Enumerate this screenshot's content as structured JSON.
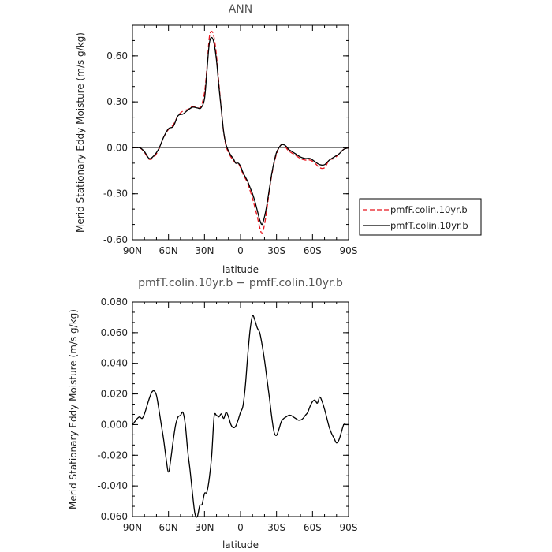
{
  "chart_data": [
    {
      "type": "line",
      "title": "ANN",
      "xlabel": "latitude",
      "ylabel": "Merid Stationary Eddy Moisture (m/s g/kg)",
      "xlim": [
        90,
        -90
      ],
      "ylim": [
        -0.6,
        0.8
      ],
      "x_ticks": [
        90,
        60,
        30,
        0,
        -30,
        -60,
        -90
      ],
      "x_tick_labels": [
        "90N",
        "60N",
        "30N",
        "0",
        "30S",
        "60S",
        "90S"
      ],
      "y_ticks": [
        0.6,
        0.3,
        0.0,
        -0.3,
        -0.6
      ],
      "y_tick_labels": [
        "0.60",
        "0.30",
        "0.00",
        "-0.30",
        "-0.60"
      ],
      "legend_position": "right",
      "series": [
        {
          "name": "pmfF.colin.10yr.b",
          "color": "#e8141c",
          "dash": "dashed",
          "x": [
            90,
            84,
            80,
            76,
            72,
            68,
            64,
            60,
            56,
            52,
            48,
            44,
            40,
            36,
            33,
            30,
            28,
            26,
            24,
            22,
            20,
            18,
            16,
            14,
            12,
            10,
            8,
            6,
            4,
            2,
            0,
            -2,
            -4,
            -6,
            -8,
            -10,
            -12,
            -14,
            -16,
            -18,
            -20,
            -22,
            -24,
            -26,
            -28,
            -30,
            -32,
            -34,
            -36,
            -38,
            -40,
            -42,
            -44,
            -46,
            -50,
            -54,
            -58,
            -62,
            -66,
            -70,
            -74,
            -78,
            -82,
            -86,
            -90
          ],
          "values": [
            0.0,
            0.0,
            -0.03,
            -0.075,
            -0.06,
            -0.01,
            0.07,
            0.12,
            0.15,
            0.21,
            0.24,
            0.25,
            0.27,
            0.26,
            0.27,
            0.36,
            0.52,
            0.72,
            0.76,
            0.72,
            0.6,
            0.42,
            0.25,
            0.1,
            0.01,
            -0.03,
            -0.06,
            -0.08,
            -0.1,
            -0.1,
            -0.13,
            -0.17,
            -0.2,
            -0.23,
            -0.28,
            -0.33,
            -0.39,
            -0.45,
            -0.52,
            -0.56,
            -0.5,
            -0.4,
            -0.28,
            -0.18,
            -0.1,
            -0.04,
            0.0,
            0.02,
            0.02,
            0.0,
            -0.02,
            -0.03,
            -0.04,
            -0.05,
            -0.07,
            -0.08,
            -0.08,
            -0.1,
            -0.13,
            -0.13,
            -0.08,
            -0.07,
            -0.04,
            -0.01,
            0.0
          ]
        },
        {
          "name": "pmfT.colin.10yr.b",
          "color": "#000000",
          "dash": "solid",
          "x": [
            90,
            84,
            80,
            76,
            72,
            68,
            64,
            60,
            56,
            52,
            48,
            44,
            40,
            36,
            33,
            30,
            28,
            26,
            24,
            22,
            20,
            18,
            16,
            14,
            12,
            10,
            8,
            6,
            4,
            2,
            0,
            -2,
            -4,
            -6,
            -8,
            -10,
            -12,
            -14,
            -16,
            -18,
            -20,
            -22,
            -24,
            -26,
            -28,
            -30,
            -32,
            -34,
            -36,
            -38,
            -40,
            -42,
            -44,
            -46,
            -50,
            -54,
            -58,
            -62,
            -66,
            -70,
            -74,
            -78,
            -82,
            -86,
            -90
          ],
          "values": [
            0.0,
            0.0,
            -0.025,
            -0.07,
            -0.05,
            -0.005,
            0.07,
            0.125,
            0.14,
            0.21,
            0.22,
            0.245,
            0.265,
            0.26,
            0.26,
            0.32,
            0.5,
            0.68,
            0.72,
            0.68,
            0.57,
            0.4,
            0.25,
            0.1,
            0.02,
            -0.02,
            -0.05,
            -0.07,
            -0.1,
            -0.1,
            -0.12,
            -0.16,
            -0.19,
            -0.22,
            -0.26,
            -0.3,
            -0.35,
            -0.41,
            -0.47,
            -0.5,
            -0.45,
            -0.37,
            -0.27,
            -0.17,
            -0.09,
            -0.03,
            0.0,
            0.02,
            0.02,
            0.01,
            -0.01,
            -0.02,
            -0.03,
            -0.04,
            -0.06,
            -0.07,
            -0.07,
            -0.09,
            -0.11,
            -0.11,
            -0.08,
            -0.06,
            -0.04,
            -0.01,
            0.0
          ]
        }
      ]
    },
    {
      "type": "line",
      "title": "pmfT.colin.10yr.b − pmfF.colin.10yr.b",
      "xlabel": "latitude",
      "ylabel": "Merid Stationary Eddy Moisture (m/s g/kg)",
      "xlim": [
        90,
        -90
      ],
      "ylim": [
        -0.06,
        0.08
      ],
      "x_ticks": [
        90,
        60,
        30,
        0,
        -30,
        -60,
        -90
      ],
      "x_tick_labels": [
        "90N",
        "60N",
        "30N",
        "0",
        "30S",
        "60S",
        "90S"
      ],
      "y_ticks": [
        0.08,
        0.06,
        0.04,
        0.02,
        0.0,
        -0.02,
        -0.04,
        -0.06
      ],
      "y_tick_labels": [
        "0.080",
        "0.060",
        "0.040",
        "0.020",
        "0.000",
        "-0.020",
        "-0.040",
        "-0.060"
      ],
      "series": [
        {
          "color": "#000000",
          "dash": "solid",
          "x": [
            90,
            88,
            86,
            84,
            82,
            80,
            78,
            76,
            74,
            72,
            70,
            68,
            66,
            64,
            62,
            60,
            58,
            56,
            54,
            52,
            50,
            48,
            46,
            44,
            42,
            40,
            38,
            36,
            34,
            32,
            30,
            28,
            26,
            24,
            22,
            20,
            18,
            16,
            14,
            12,
            10,
            8,
            6,
            4,
            2,
            0,
            -2,
            -4,
            -6,
            -8,
            -10,
            -12,
            -14,
            -16,
            -18,
            -20,
            -22,
            -24,
            -26,
            -28,
            -30,
            -32,
            -34,
            -36,
            -38,
            -40,
            -42,
            -44,
            -46,
            -48,
            -50,
            -52,
            -54,
            -56,
            -58,
            -60,
            -62,
            -64,
            -66,
            -68,
            -70,
            -72,
            -74,
            -76,
            -78,
            -80,
            -82,
            -84,
            -86,
            -88,
            -90
          ],
          "values": [
            0.0,
            0.002,
            0.004,
            0.005,
            0.004,
            0.007,
            0.012,
            0.017,
            0.021,
            0.022,
            0.019,
            0.01,
            0.0,
            -0.01,
            -0.022,
            -0.031,
            -0.022,
            -0.01,
            0.0,
            0.005,
            0.006,
            0.008,
            0.0,
            -0.017,
            -0.03,
            -0.045,
            -0.058,
            -0.06,
            -0.053,
            -0.052,
            -0.045,
            -0.044,
            -0.035,
            -0.02,
            0.005,
            0.006,
            0.005,
            0.007,
            0.004,
            0.008,
            0.005,
            0.0,
            -0.002,
            -0.001,
            0.003,
            0.008,
            0.012,
            0.025,
            0.045,
            0.062,
            0.071,
            0.068,
            0.063,
            0.06,
            0.052,
            0.042,
            0.03,
            0.018,
            0.005,
            -0.005,
            -0.007,
            -0.003,
            0.002,
            0.004,
            0.005,
            0.006,
            0.006,
            0.005,
            0.004,
            0.003,
            0.003,
            0.004,
            0.006,
            0.008,
            0.012,
            0.015,
            0.016,
            0.014,
            0.018,
            0.015,
            0.01,
            0.004,
            -0.002,
            -0.006,
            -0.009,
            -0.012,
            -0.01,
            -0.005,
            0.0,
            0.0,
            0.0
          ]
        }
      ]
    }
  ]
}
